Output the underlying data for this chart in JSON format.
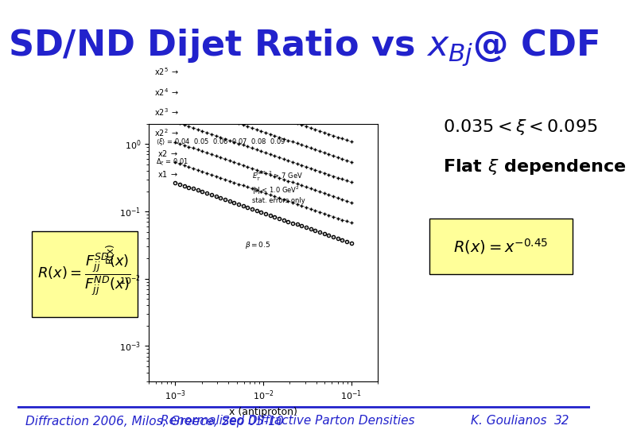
{
  "title": "SD/ND Dijet Ratio vs x$_{Bj}$@ CDF",
  "title_color": "#2222CC",
  "title_fontsize": 32,
  "background_color": "#FFFFFF",
  "footer_text": "Diffraction 2006, Milos, Greece, Sep 05-10",
  "footer_text2": "Renormalized Diffractive Parton Densities",
  "footer_text3": "K. Goulianos",
  "footer_page": "32",
  "annotation_xi_range": "0.035 < ξ < 0.095",
  "annotation_flat": "Flat ξ dependence",
  "formula_left": "R(x) = \\frac{F_{jj}^{SD}(x)}{F_{jj}^{ND}(x)}",
  "formula_right": "R(x) = x^{-0.45}",
  "plot_image_placeholder": true,
  "footer_color": "#2222CC",
  "footer_fontsize": 11,
  "annotation_fontsize": 16,
  "formula_fontsize": 16
}
